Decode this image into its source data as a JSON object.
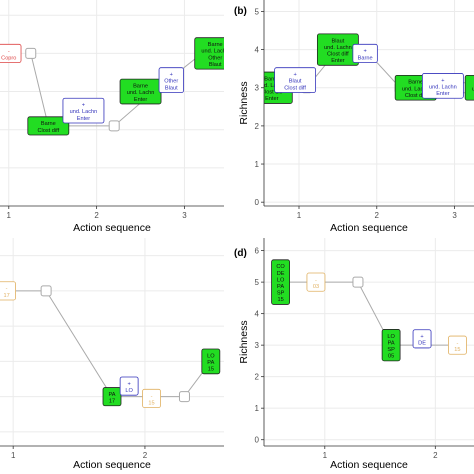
{
  "colors": {
    "plot_bg": "#ffffff",
    "grid": "#ebebeb",
    "axis": "#333333",
    "path": "#aaaaaa",
    "path_node": "#aaaaaa",
    "green": "#22dd22",
    "red": "#dd4444",
    "blue": "#3333bb",
    "orange": "#e0b060"
  },
  "chart_data": [
    {
      "id": "a",
      "type": "line",
      "panel_tag": "",
      "xlabel": "Action sequence",
      "ylabel": "",
      "xticks": [
        1,
        2,
        3
      ],
      "xlim": [
        0.9,
        3.45
      ],
      "ylim": [
        0,
        5.4
      ],
      "path": [
        {
          "x": 1.25,
          "y": 4.0
        },
        {
          "x": 1.45,
          "y": 2.1
        },
        {
          "x": 2.2,
          "y": 2.1
        },
        {
          "x": 2.65,
          "y": 3.0
        },
        {
          "x": 3.2,
          "y": 4.0
        }
      ],
      "boxes": [
        {
          "x": 1.0,
          "y": 4.0,
          "style": "outline",
          "color": "red",
          "lines": [
            "-",
            "Copro"
          ]
        },
        {
          "x": 1.45,
          "y": 2.1,
          "style": "filled",
          "color": "green",
          "lines": [
            "Barne",
            "Clost diff"
          ]
        },
        {
          "x": 1.85,
          "y": 2.5,
          "style": "outline",
          "color": "blue",
          "lines": [
            "+",
            "und. Lachn",
            "Enter"
          ]
        },
        {
          "x": 2.5,
          "y": 3.0,
          "style": "filled",
          "color": "green",
          "lines": [
            "Barne",
            "und. Lachn",
            "Enter"
          ]
        },
        {
          "x": 2.85,
          "y": 3.3,
          "style": "outline",
          "color": "blue",
          "lines": [
            "+",
            "Other",
            "Blaut"
          ]
        },
        {
          "x": 3.35,
          "y": 4.0,
          "style": "filled",
          "color": "green",
          "lines": [
            "Barne",
            "und. Lachn",
            "Other",
            "Blaut"
          ]
        }
      ]
    },
    {
      "id": "b",
      "type": "line",
      "panel_tag": "(b)",
      "xlabel": "Action sequence",
      "ylabel": "Richness",
      "yticks": [
        0,
        1,
        2,
        3,
        4,
        5
      ],
      "xticks": [
        1,
        2,
        3
      ],
      "xlim": [
        0.55,
        3.25
      ],
      "ylim": [
        -0.1,
        5.3
      ],
      "path": [
        {
          "x": 1.1,
          "y": 3.0
        },
        {
          "x": 1.5,
          "y": 4.0
        },
        {
          "x": 1.85,
          "y": 4.0
        },
        {
          "x": 2.3,
          "y": 3.0
        },
        {
          "x": 3.15,
          "y": 3.0
        }
      ],
      "boxes": [
        {
          "x": 0.65,
          "y": 3.0,
          "style": "filled",
          "color": "green",
          "lines": [
            "Barne",
            "und. Lachn",
            "Clost diff",
            "Enter"
          ]
        },
        {
          "x": 0.95,
          "y": 3.2,
          "style": "outline",
          "color": "blue",
          "lines": [
            "+",
            "Blaut",
            "Clost diff"
          ]
        },
        {
          "x": 1.5,
          "y": 4.0,
          "style": "filled",
          "color": "green",
          "lines": [
            "Blaut",
            "und. Lachn",
            "Clost diff",
            "Enter"
          ]
        },
        {
          "x": 1.85,
          "y": 3.9,
          "style": "outline",
          "color": "blue",
          "lines": [
            "+",
            "Barne"
          ]
        },
        {
          "x": 2.5,
          "y": 3.0,
          "style": "filled",
          "color": "green",
          "lines": [
            "Barne",
            "und. Lachn",
            "Clost diff"
          ]
        },
        {
          "x": 2.85,
          "y": 3.05,
          "style": "outline",
          "color": "blue",
          "lines": [
            "+",
            "und. Lachn",
            "Enter"
          ]
        },
        {
          "x": 3.4,
          "y": 3.0,
          "style": "filled",
          "color": "green",
          "lines": [
            "Barne",
            "und. Lachn",
            "Enter"
          ]
        }
      ]
    },
    {
      "id": "c",
      "type": "line",
      "panel_tag": "",
      "xlabel": "Action sequence",
      "ylabel": "",
      "xticks": [
        1,
        2
      ],
      "xlim": [
        0.9,
        2.6
      ],
      "ylim": [
        0.6,
        6.5
      ],
      "path": [
        {
          "x": 0.9,
          "y": 5.0
        },
        {
          "x": 1.25,
          "y": 5.0
        },
        {
          "x": 1.75,
          "y": 2.0
        },
        {
          "x": 2.3,
          "y": 2.0
        },
        {
          "x": 2.5,
          "y": 3.0
        }
      ],
      "boxes": [
        {
          "x": 0.95,
          "y": 5.0,
          "style": "outline",
          "color": "orange",
          "lines": [
            "-",
            "17"
          ]
        },
        {
          "x": 1.75,
          "y": 2.0,
          "style": "filled",
          "color": "green",
          "lines": [
            "PA",
            "17"
          ]
        },
        {
          "x": 1.88,
          "y": 2.3,
          "style": "outline",
          "color": "blue",
          "lines": [
            "+",
            "LO"
          ]
        },
        {
          "x": 2.05,
          "y": 1.95,
          "style": "outline",
          "color": "orange",
          "lines": [
            "-",
            "15"
          ]
        },
        {
          "x": 2.5,
          "y": 3.0,
          "style": "filled",
          "color": "green",
          "lines": [
            "LO",
            "PA",
            "15"
          ]
        }
      ]
    },
    {
      "id": "d",
      "type": "line",
      "panel_tag": "(d)",
      "xlabel": "Action sequence",
      "ylabel": "Richness",
      "yticks": [
        0,
        1,
        2,
        3,
        4,
        5,
        6
      ],
      "xticks": [
        1,
        2
      ],
      "xlim": [
        0.45,
        2.35
      ],
      "ylim": [
        -0.2,
        6.4
      ],
      "path": [
        {
          "x": 0.6,
          "y": 5.0
        },
        {
          "x": 1.3,
          "y": 5.0
        },
        {
          "x": 1.6,
          "y": 3.0
        },
        {
          "x": 2.2,
          "y": 3.0
        }
      ],
      "boxes": [
        {
          "x": 0.6,
          "y": 5.0,
          "style": "filled",
          "color": "green",
          "lines": [
            "CO",
            "DE",
            "LO",
            "PA",
            "SP",
            "15"
          ]
        },
        {
          "x": 0.92,
          "y": 5.0,
          "style": "outline",
          "color": "orange",
          "lines": [
            "-",
            "03"
          ]
        },
        {
          "x": 1.6,
          "y": 3.0,
          "style": "filled",
          "color": "green",
          "lines": [
            "LO",
            "PA",
            "SP",
            "05"
          ]
        },
        {
          "x": 1.88,
          "y": 3.2,
          "style": "outline",
          "color": "blue",
          "lines": [
            "+",
            "DE"
          ]
        },
        {
          "x": 2.2,
          "y": 3.0,
          "style": "outline",
          "color": "orange",
          "lines": [
            "-",
            "15"
          ]
        }
      ]
    }
  ]
}
